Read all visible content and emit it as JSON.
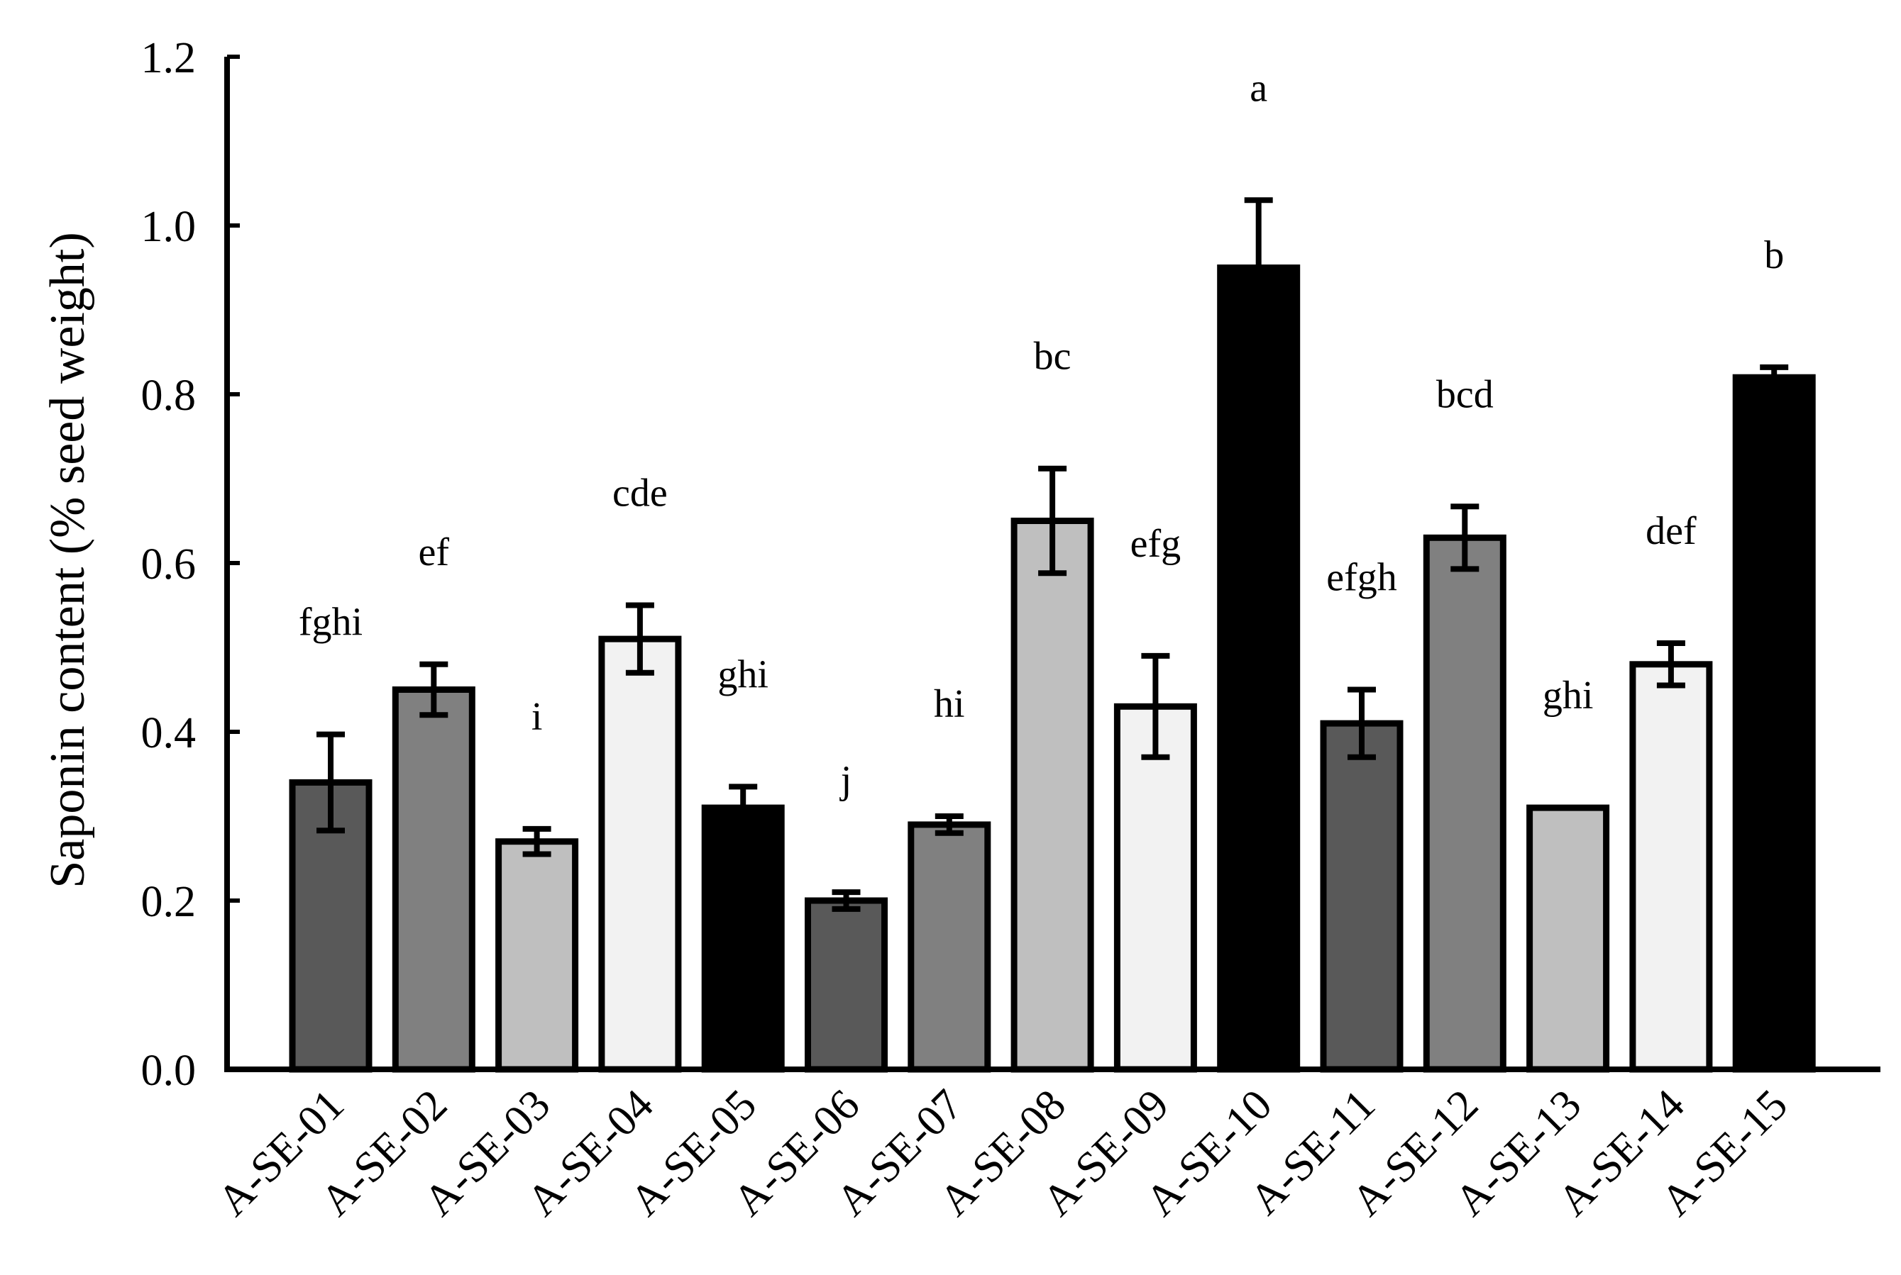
{
  "chart_data": {
    "type": "bar",
    "title": "",
    "xlabel": "",
    "ylabel": "Saponin content (% seed weight)",
    "ylim": [
      0,
      1.2
    ],
    "yticks": [
      "0.0",
      "0.2",
      "0.4",
      "0.6",
      "0.8",
      "1.0",
      "1.2"
    ],
    "categories": [
      "A-SE-01",
      "A-SE-02",
      "A-SE-03",
      "A-SE-04",
      "A-SE-05",
      "A-SE-06",
      "A-SE-07",
      "A-SE-08",
      "A-SE-09",
      "A-SE-10",
      "A-SE-11",
      "A-SE-12",
      "A-SE-13",
      "A-SE-14",
      "A-SE-15"
    ],
    "values": [
      0.34,
      0.45,
      0.27,
      0.51,
      0.31,
      0.2,
      0.29,
      0.65,
      0.43,
      0.95,
      0.41,
      0.63,
      0.31,
      0.48,
      0.82
    ],
    "errors": [
      0.057,
      0.03,
      0.015,
      0.04,
      0.025,
      0.01,
      0.01,
      0.062,
      0.06,
      0.08,
      0.04,
      0.037,
      0.0,
      0.025,
      0.012
    ],
    "significance": [
      "fghi",
      "ef",
      "i",
      "cde",
      "ghi",
      "j",
      "hi",
      "bc",
      "efg",
      "a",
      "efgh",
      "bcd",
      "ghi",
      "def",
      "b"
    ],
    "bar_colors": [
      "#595959",
      "#808080",
      "#bfbfbf",
      "#f2f2f2",
      "#000000",
      "#595959",
      "#808080",
      "#bfbfbf",
      "#f2f2f2",
      "#000000",
      "#595959",
      "#808080",
      "#bfbfbf",
      "#f2f2f2",
      "#000000"
    ],
    "grid": false,
    "legend": "none"
  }
}
